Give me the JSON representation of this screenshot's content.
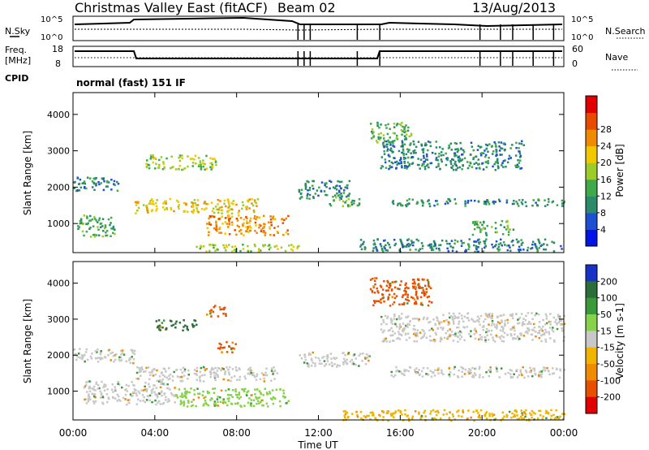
{
  "header": {
    "station": "Christmas Valley East (fitACF)",
    "beam": "Beam 02",
    "date": "13/Aug/2013"
  },
  "noise_panel": {
    "left_label": "N.Sky",
    "right_label": "N.Search",
    "left_ticks": [
      "10^5",
      "10^0"
    ],
    "right_ticks": [
      "10^5",
      "10^0"
    ]
  },
  "freq_panel": {
    "left_label_1": "Freq.",
    "left_label_2": "[MHz]",
    "right_label": "Nave",
    "left_ticks": [
      "18",
      "8"
    ],
    "right_ticks": [
      "60",
      "0"
    ]
  },
  "cpid": {
    "label": "CPID",
    "value": "normal (fast) 151 IF"
  },
  "chart_data": [
    {
      "type": "heatmap",
      "name": "power",
      "ylabel": "Slant Range [km]",
      "ylim": [
        200,
        4600
      ],
      "yticks": [
        "1000",
        "2000",
        "3000",
        "4000"
      ],
      "xlim": [
        "00:00",
        "24:00"
      ],
      "colorbar": {
        "label": "Power [dB]",
        "ticks": [
          "4",
          "8",
          "12",
          "16",
          "20",
          "24",
          "28"
        ],
        "colors": [
          "#0014e6",
          "#1e50d2",
          "#2a8a6a",
          "#3fa84a",
          "#9ccc2a",
          "#f0c800",
          "#f08a00",
          "#e84a00",
          "#e00000"
        ]
      },
      "bands": [
        {
          "t0": 0.0,
          "t1": 2.2,
          "r0": 1900,
          "r1": 2300,
          "level": 8
        },
        {
          "t0": 0.2,
          "t1": 2.0,
          "r0": 650,
          "r1": 1250,
          "level": 12
        },
        {
          "t0": 3.0,
          "t1": 9.0,
          "r0": 1300,
          "r1": 1700,
          "level": 20
        },
        {
          "t0": 3.5,
          "t1": 7.0,
          "r0": 2500,
          "r1": 2900,
          "level": 16
        },
        {
          "t0": 6.5,
          "t1": 10.5,
          "r0": 700,
          "r1": 1250,
          "level": 24
        },
        {
          "t0": 6.0,
          "t1": 11.0,
          "r0": 250,
          "r1": 450,
          "level": 16
        },
        {
          "t0": 11.0,
          "t1": 13.5,
          "r0": 1700,
          "r1": 2200,
          "level": 8
        },
        {
          "t0": 12.5,
          "t1": 14.0,
          "r0": 1500,
          "r1": 1800,
          "level": 12
        },
        {
          "t0": 15.0,
          "t1": 22.0,
          "r0": 2500,
          "r1": 3300,
          "level": 8
        },
        {
          "t0": 14.5,
          "t1": 16.5,
          "r0": 3200,
          "r1": 3800,
          "level": 12
        },
        {
          "t0": 15.5,
          "t1": 24.0,
          "r0": 1500,
          "r1": 1700,
          "level": 8
        },
        {
          "t0": 19.5,
          "t1": 21.5,
          "r0": 700,
          "r1": 1100,
          "level": 12
        },
        {
          "t0": 14.0,
          "t1": 24.0,
          "r0": 250,
          "r1": 600,
          "level": 8
        }
      ]
    },
    {
      "type": "heatmap",
      "name": "velocity",
      "ylabel": "Slant Range [km]",
      "ylim": [
        200,
        4600
      ],
      "yticks": [
        "1000",
        "2000",
        "3000",
        "4000"
      ],
      "xlim": [
        "00:00",
        "24:00"
      ],
      "xticks": [
        "00:00",
        "04:00",
        "08:00",
        "12:00",
        "16:00",
        "20:00",
        "00:00"
      ],
      "xlabel": "Time UT",
      "colorbar": {
        "label": "Velocity [m s-1]",
        "ticks": [
          "200",
          "100",
          "50",
          "15",
          "-15",
          "-50",
          "-100",
          "-200"
        ],
        "colors": [
          "#1832c8",
          "#2a6e3a",
          "#3a9a3a",
          "#86d24a",
          "#c8c8c8",
          "#f0b400",
          "#f08a00",
          "#e85000",
          "#e00000"
        ]
      },
      "bands": [
        {
          "t0": 0.0,
          "t1": 3.0,
          "r0": 1800,
          "r1": 2200,
          "level": 0
        },
        {
          "t0": 0.5,
          "t1": 5.0,
          "r0": 650,
          "r1": 1300,
          "level": 0
        },
        {
          "t0": 3.0,
          "t1": 10.0,
          "r0": 1300,
          "r1": 1700,
          "level": 0
        },
        {
          "t0": 5.0,
          "t1": 10.5,
          "r0": 600,
          "r1": 1100,
          "level": 30
        },
        {
          "t0": 4.0,
          "t1": 6.0,
          "r0": 2700,
          "r1": 3000,
          "level": 120
        },
        {
          "t0": 6.5,
          "t1": 7.5,
          "r0": 3100,
          "r1": 3400,
          "level": -180
        },
        {
          "t0": 7.0,
          "t1": 8.0,
          "r0": 2100,
          "r1": 2400,
          "level": -180
        },
        {
          "t0": 14.5,
          "t1": 17.5,
          "r0": 3400,
          "r1": 4200,
          "level": -200
        },
        {
          "t0": 15.0,
          "t1": 24.0,
          "r0": 2400,
          "r1": 3200,
          "level": 0
        },
        {
          "t0": 15.5,
          "t1": 24.0,
          "r0": 1400,
          "r1": 1700,
          "level": 0
        },
        {
          "t0": 11.0,
          "t1": 14.5,
          "r0": 1700,
          "r1": 2100,
          "level": 0
        },
        {
          "t0": 13.0,
          "t1": 24.0,
          "r0": 200,
          "r1": 500,
          "level": -40
        }
      ]
    }
  ]
}
